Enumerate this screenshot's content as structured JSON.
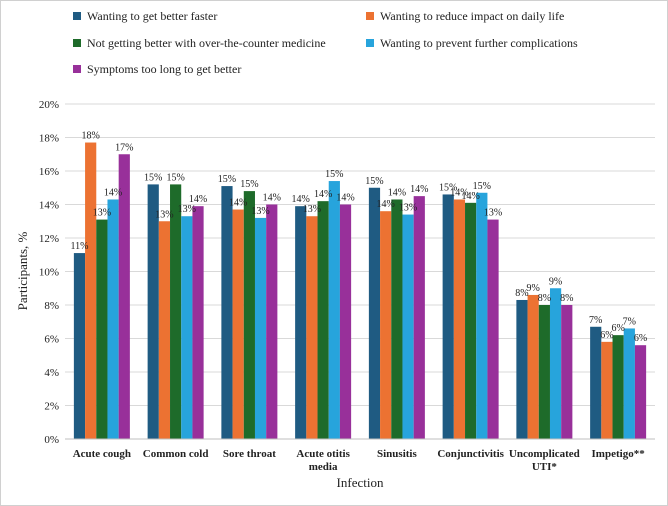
{
  "chart_data": {
    "type": "bar",
    "title": "",
    "xlabel": "Infection",
    "ylabel": "Participants, %",
    "ylim": [
      0,
      20
    ],
    "yticks": [
      "0%",
      "2%",
      "4%",
      "6%",
      "8%",
      "10%",
      "12%",
      "14%",
      "16%",
      "18%",
      "20%"
    ],
    "grid": true,
    "legend_position": "top",
    "categories": [
      [
        "Acute cough"
      ],
      [
        "Common cold"
      ],
      [
        "Sore throat"
      ],
      [
        "Acute otitis",
        "media"
      ],
      [
        "Sinusitis"
      ],
      [
        "Conjunctivitis"
      ],
      [
        "Uncomplicated",
        "UTI*"
      ],
      [
        "Impetigo**"
      ]
    ],
    "series": [
      {
        "name": "Wanting to get better faster",
        "color": "#1f5b82",
        "values": [
          11.1,
          15.2,
          15.1,
          13.9,
          15.0,
          14.6,
          8.3,
          6.7
        ],
        "labels": [
          "11%",
          "15%",
          "15%",
          "14%",
          "15%",
          "15%",
          "8%",
          "7%"
        ]
      },
      {
        "name": "Wanting to reduce impact on daily life",
        "color": "#ec7232",
        "values": [
          17.7,
          13.0,
          13.7,
          13.3,
          13.6,
          14.3,
          8.6,
          5.8
        ],
        "labels": [
          "18%",
          "13%",
          "14%",
          "13%",
          "14%",
          "14%",
          "9%",
          "6%"
        ]
      },
      {
        "name": "Not getting better with over-the-counter medicine",
        "color": "#1e6b2a",
        "values": [
          13.1,
          15.2,
          14.8,
          14.2,
          14.3,
          14.1,
          8.0,
          6.2
        ],
        "labels": [
          "13%",
          "15%",
          "15%",
          "14%",
          "14%",
          "14%",
          "8%",
          "6%"
        ]
      },
      {
        "name": "Wanting to prevent further complications",
        "color": "#27a4dc",
        "values": [
          14.3,
          13.3,
          13.2,
          15.4,
          13.4,
          14.7,
          9.0,
          6.6
        ],
        "labels": [
          "14%",
          "13%",
          "13%",
          "15%",
          "13%",
          "15%",
          "9%",
          "7%"
        ]
      },
      {
        "name": "Symptoms too long to get better",
        "color": "#98309a",
        "values": [
          17.0,
          13.9,
          14.0,
          14.0,
          14.5,
          13.1,
          8.0,
          5.6
        ],
        "labels": [
          "17%",
          "14%",
          "14%",
          "14%",
          "14%",
          "13%",
          "8%",
          "6%"
        ]
      }
    ]
  }
}
